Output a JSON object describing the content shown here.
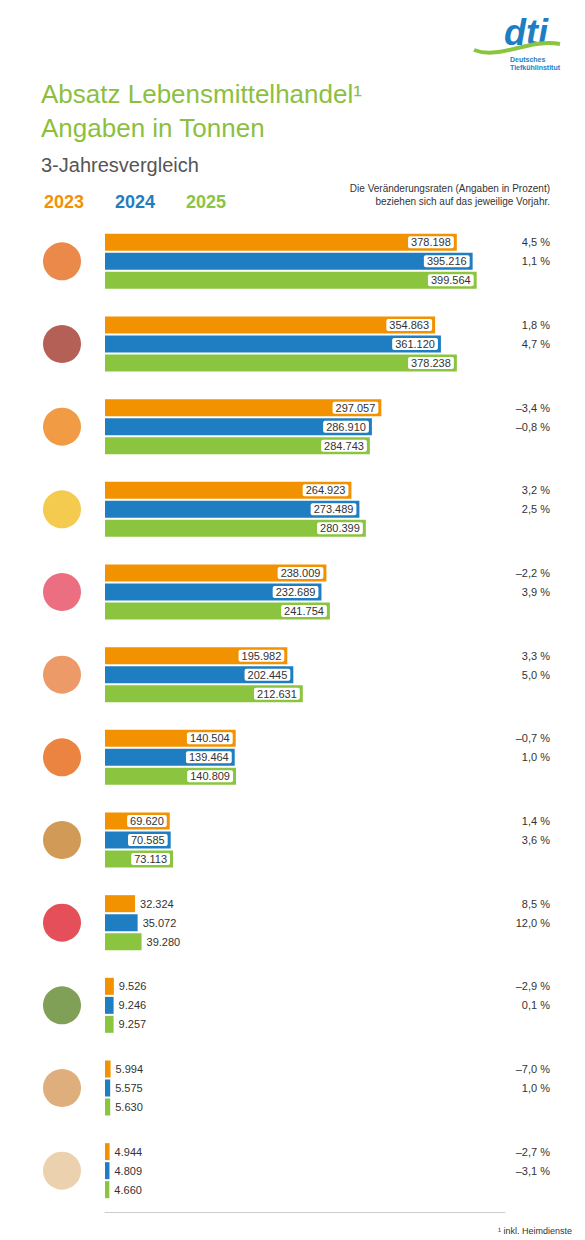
{
  "chart_data": {
    "type": "bar",
    "title": [
      "Absatz Lebensmittelhandel¹",
      "Angaben in Tonnen"
    ],
    "subtitle": "3-Jahresvergleich",
    "orientation": "horizontal",
    "categories": [
      null,
      null,
      null,
      null,
      null,
      null,
      null,
      null,
      null,
      null,
      null,
      null
    ],
    "series": [
      {
        "name": "2023",
        "color": "#f39200",
        "values": [
          378198,
          354863,
          297057,
          264923,
          238009,
          195982,
          140504,
          69620,
          32324,
          9526,
          5994,
          4944
        ],
        "value_labels": [
          "378.198",
          "354.863",
          "297.057",
          "264.923",
          "238.009",
          "195.982",
          "140.504",
          "69.620",
          "32.324",
          "9.526",
          "5.994",
          "4.944"
        ]
      },
      {
        "name": "2024",
        "color": "#1f7ec1",
        "values": [
          395216,
          361120,
          286910,
          273489,
          232689,
          202445,
          139464,
          70585,
          35072,
          9246,
          5575,
          4809
        ],
        "value_labels": [
          "395.216",
          "361.120",
          "286.910",
          "273.489",
          "232.689",
          "202.445",
          "139.464",
          "70.585",
          "35.072",
          "9.246",
          "5.575",
          "4.809"
        ]
      },
      {
        "name": "2025",
        "color": "#8bc53f",
        "values": [
          399564,
          378238,
          284743,
          280399,
          241754,
          212631,
          140809,
          73113,
          39280,
          9257,
          5630,
          4660
        ],
        "value_labels": [
          "399.564",
          "378.238",
          "284.743",
          "280.399",
          "241.754",
          "212.631",
          "140.809",
          "73.113",
          "39.280",
          "9.257",
          "5.630",
          "4.660"
        ]
      }
    ],
    "change_rate_note": [
      "Die Veränderungsraten (Angaben in Prozent)",
      "beziehen sich auf das jeweilige Vorjahr."
    ],
    "change_rate_labels": [
      [
        "4,5 %",
        "1,8 %",
        "–3,4 %",
        "3,2 %",
        "–2,2 %",
        "3,3 %",
        "–0,7 %",
        "1,4 %",
        "8,5 %",
        "–2,9 %",
        "–7,0 %",
        "–2,7 %"
      ],
      [
        "1,1 %",
        "4,7 %",
        "–0,8 %",
        "2,5 %",
        "3,9 %",
        "5,0 %",
        "1,0 %",
        "3,6 %",
        "12,0 %",
        "0,1 %",
        "1,0 %",
        "–3,1 %"
      ]
    ],
    "footnote": "¹ inkl. Heimdienste",
    "logo": {
      "text": "dti",
      "subtext": [
        "Deutsches",
        "Tiefkühlinstitut"
      ]
    },
    "xlim": [
      0,
      430000
    ],
    "xticks": [],
    "tick_labels": false,
    "grid": false,
    "legend": "top-left",
    "data_labels": true
  }
}
